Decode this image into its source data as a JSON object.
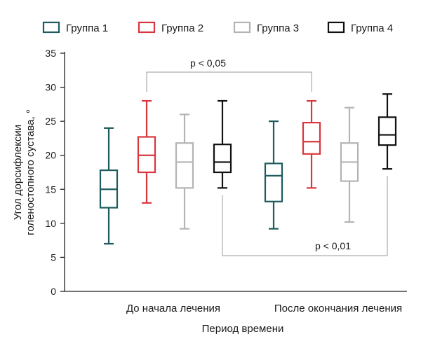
{
  "chart_data": {
    "type": "box",
    "ylabel_lines": [
      "Угол дорсифлексии",
      "голеностопного сустава, °"
    ],
    "xlabel": "Период времени",
    "ylim": [
      0,
      35
    ],
    "yticks": [
      0,
      5,
      10,
      15,
      20,
      25,
      30,
      35
    ],
    "categories": [
      "До начала лечения",
      "После окончания лечения"
    ],
    "legend_position": "top",
    "grid": false,
    "series": [
      {
        "name": "Группа 1",
        "color": "#1e5b5e",
        "boxes": [
          {
            "min": 7,
            "q1": 12.3,
            "median": 15,
            "q3": 17.8,
            "max": 24
          },
          {
            "min": 9.2,
            "q1": 13.2,
            "median": 17,
            "q3": 18.8,
            "max": 25
          }
        ]
      },
      {
        "name": "Группа 2",
        "color": "#d9363e",
        "boxes": [
          {
            "min": 13,
            "q1": 17.5,
            "median": 20,
            "q3": 22.7,
            "max": 28
          },
          {
            "min": 15.2,
            "q1": 20.2,
            "median": 22,
            "q3": 24.8,
            "max": 28
          }
        ]
      },
      {
        "name": "Группа 3",
        "color": "#b4b4b4",
        "boxes": [
          {
            "min": 9.2,
            "q1": 15.2,
            "median": 19,
            "q3": 21.8,
            "max": 26
          },
          {
            "min": 10.2,
            "q1": 16.2,
            "median": 19,
            "q3": 21.8,
            "max": 27
          }
        ]
      },
      {
        "name": "Группа 4",
        "color": "#111111",
        "boxes": [
          {
            "min": 15.2,
            "q1": 17.5,
            "median": 19,
            "q3": 21.6,
            "max": 28
          },
          {
            "min": 18,
            "q1": 21.5,
            "median": 23,
            "q3": 25.6,
            "max": 29
          }
        ]
      }
    ],
    "annotations": [
      {
        "text": "p < 0,05",
        "from": "Группа 2 / До начала лечения",
        "to": "Группа 2 / После окончания лечения",
        "side": "top"
      },
      {
        "text": "p < 0,01",
        "from": "Группа 4 / До начала лечения",
        "to": "Группа 4 / После окончания лечения",
        "side": "bottom"
      }
    ]
  }
}
